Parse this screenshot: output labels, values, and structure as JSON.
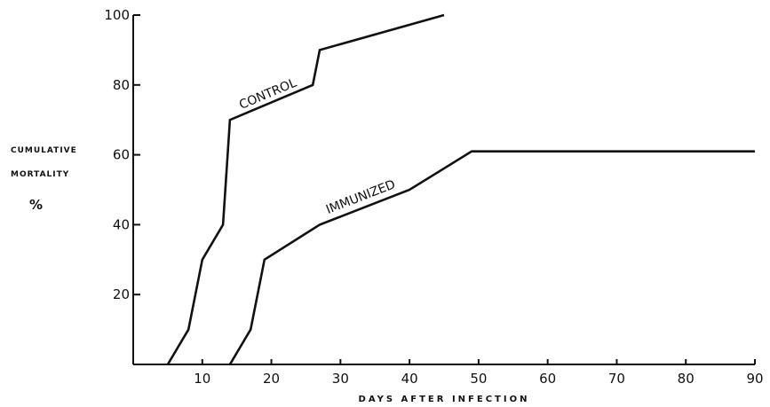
{
  "chart_data": {
    "type": "line",
    "title": "",
    "ylabel_lines": [
      "CUMULATIVE",
      "MORTALITY",
      "%"
    ],
    "xlabel": "DAYS AFTER INFECTION",
    "xlim": [
      0,
      90
    ],
    "ylim": [
      0,
      100
    ],
    "x_ticks": [
      10,
      20,
      30,
      40,
      50,
      60,
      70,
      80,
      90
    ],
    "y_ticks": [
      20,
      40,
      60,
      80,
      100
    ],
    "grid": false,
    "series": [
      {
        "name": "CONTROL",
        "x": [
          5,
          8,
          10,
          13,
          14,
          26,
          27,
          45
        ],
        "y": [
          0,
          10,
          30,
          40,
          70,
          80,
          90,
          100
        ]
      },
      {
        "name": "IMMUNIZED",
        "x": [
          14,
          17,
          19,
          27,
          40,
          49,
          90
        ],
        "y": [
          0,
          10,
          30,
          40,
          50,
          61,
          61
        ]
      }
    ]
  }
}
